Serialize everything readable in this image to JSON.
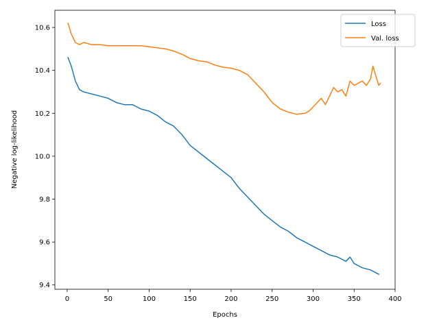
{
  "chart_data": {
    "type": "line",
    "xlabel": "Epochs",
    "ylabel": "Negative log-likelihood",
    "xlim": [
      -15,
      400
    ],
    "ylim": [
      9.38,
      10.68
    ],
    "xticks": [
      0,
      50,
      100,
      150,
      200,
      250,
      300,
      350,
      400
    ],
    "yticks": [
      9.4,
      9.6,
      9.8,
      10.0,
      10.2,
      10.4,
      10.6
    ],
    "ytick_labels": [
      "9.4",
      "9.6",
      "9.8",
      "10.0",
      "10.2",
      "10.4",
      "10.6"
    ],
    "grid": false,
    "legend_position": "top-right",
    "series": [
      {
        "name": "Loss",
        "color": "#1f77b4",
        "x": [
          1,
          5,
          10,
          15,
          20,
          30,
          40,
          50,
          60,
          70,
          80,
          90,
          100,
          110,
          120,
          130,
          140,
          150,
          160,
          170,
          180,
          190,
          200,
          210,
          220,
          230,
          240,
          250,
          260,
          270,
          280,
          290,
          300,
          310,
          320,
          330,
          340,
          345,
          350,
          360,
          370,
          380
        ],
        "y": [
          10.46,
          10.42,
          10.35,
          10.31,
          10.3,
          10.29,
          10.28,
          10.27,
          10.25,
          10.24,
          10.24,
          10.22,
          10.21,
          10.19,
          10.16,
          10.14,
          10.1,
          10.05,
          10.02,
          9.99,
          9.96,
          9.93,
          9.9,
          9.85,
          9.81,
          9.77,
          9.73,
          9.7,
          9.67,
          9.65,
          9.62,
          9.6,
          9.58,
          9.56,
          9.54,
          9.53,
          9.51,
          9.53,
          9.5,
          9.48,
          9.47,
          9.45
        ]
      },
      {
        "name": "Val. loss",
        "color": "#ff7f0e",
        "x": [
          1,
          5,
          10,
          15,
          20,
          30,
          40,
          50,
          60,
          70,
          80,
          90,
          100,
          110,
          120,
          130,
          140,
          150,
          160,
          170,
          180,
          190,
          200,
          210,
          220,
          230,
          240,
          250,
          260,
          270,
          280,
          290,
          295,
          300,
          305,
          310,
          315,
          320,
          325,
          330,
          335,
          340,
          345,
          350,
          355,
          360,
          365,
          370,
          373,
          376,
          380,
          382
        ],
        "y": [
          10.62,
          10.57,
          10.53,
          10.52,
          10.53,
          10.52,
          10.52,
          10.515,
          10.515,
          10.515,
          10.515,
          10.515,
          10.51,
          10.505,
          10.5,
          10.49,
          10.475,
          10.455,
          10.445,
          10.44,
          10.425,
          10.415,
          10.41,
          10.4,
          10.38,
          10.34,
          10.3,
          10.25,
          10.22,
          10.205,
          10.195,
          10.2,
          10.21,
          10.23,
          10.25,
          10.27,
          10.24,
          10.28,
          10.32,
          10.3,
          10.31,
          10.28,
          10.35,
          10.33,
          10.34,
          10.35,
          10.33,
          10.36,
          10.42,
          10.38,
          10.33,
          10.34
        ]
      }
    ]
  }
}
